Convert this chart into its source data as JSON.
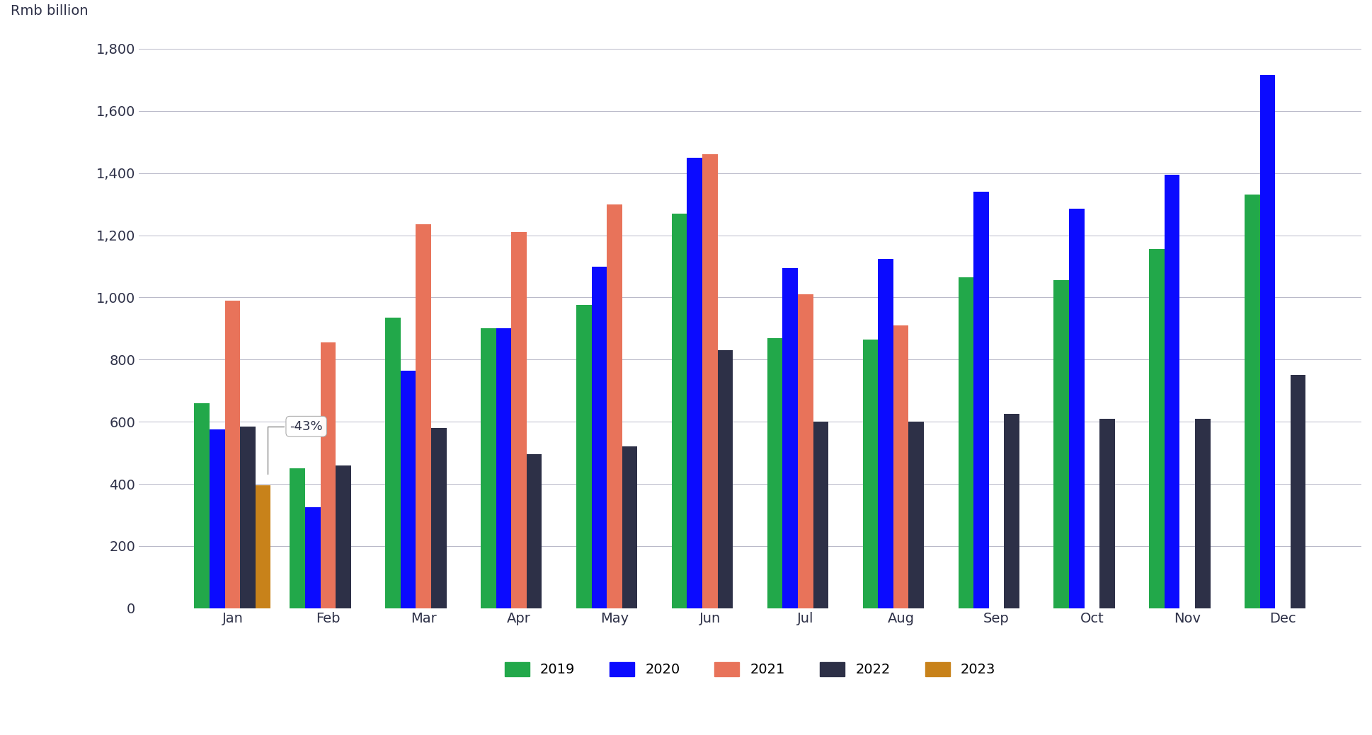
{
  "months": [
    "Jan",
    "Feb",
    "Mar",
    "Apr",
    "May",
    "Jun",
    "Jul",
    "Aug",
    "Sep",
    "Oct",
    "Nov",
    "Dec"
  ],
  "series": {
    "2019": [
      660,
      450,
      935,
      900,
      975,
      1270,
      870,
      865,
      1065,
      1055,
      1155,
      1330
    ],
    "2020": [
      575,
      325,
      765,
      900,
      1100,
      1450,
      1095,
      1125,
      1340,
      1285,
      1395,
      1715
    ],
    "2021": [
      990,
      855,
      1235,
      1210,
      1300,
      1460,
      1010,
      910,
      null,
      null,
      null,
      null
    ],
    "2022": [
      585,
      460,
      580,
      495,
      520,
      830,
      600,
      600,
      625,
      610,
      610,
      750
    ],
    "2023": [
      395,
      null,
      null,
      null,
      null,
      null,
      null,
      null,
      null,
      null,
      null,
      null
    ]
  },
  "colors": {
    "2019": "#22a84a",
    "2020": "#0b0bff",
    "2021": "#e8735a",
    "2022": "#2d3047",
    "2023": "#c8821a"
  },
  "ylabel": "Rmb billion",
  "ylim": [
    0,
    1900
  ],
  "yticks": [
    0,
    200,
    400,
    600,
    800,
    1000,
    1200,
    1400,
    1600,
    1800
  ],
  "annotation_text": "-43%",
  "background_color": "#ffffff",
  "grid_color": "#b8b8c8"
}
